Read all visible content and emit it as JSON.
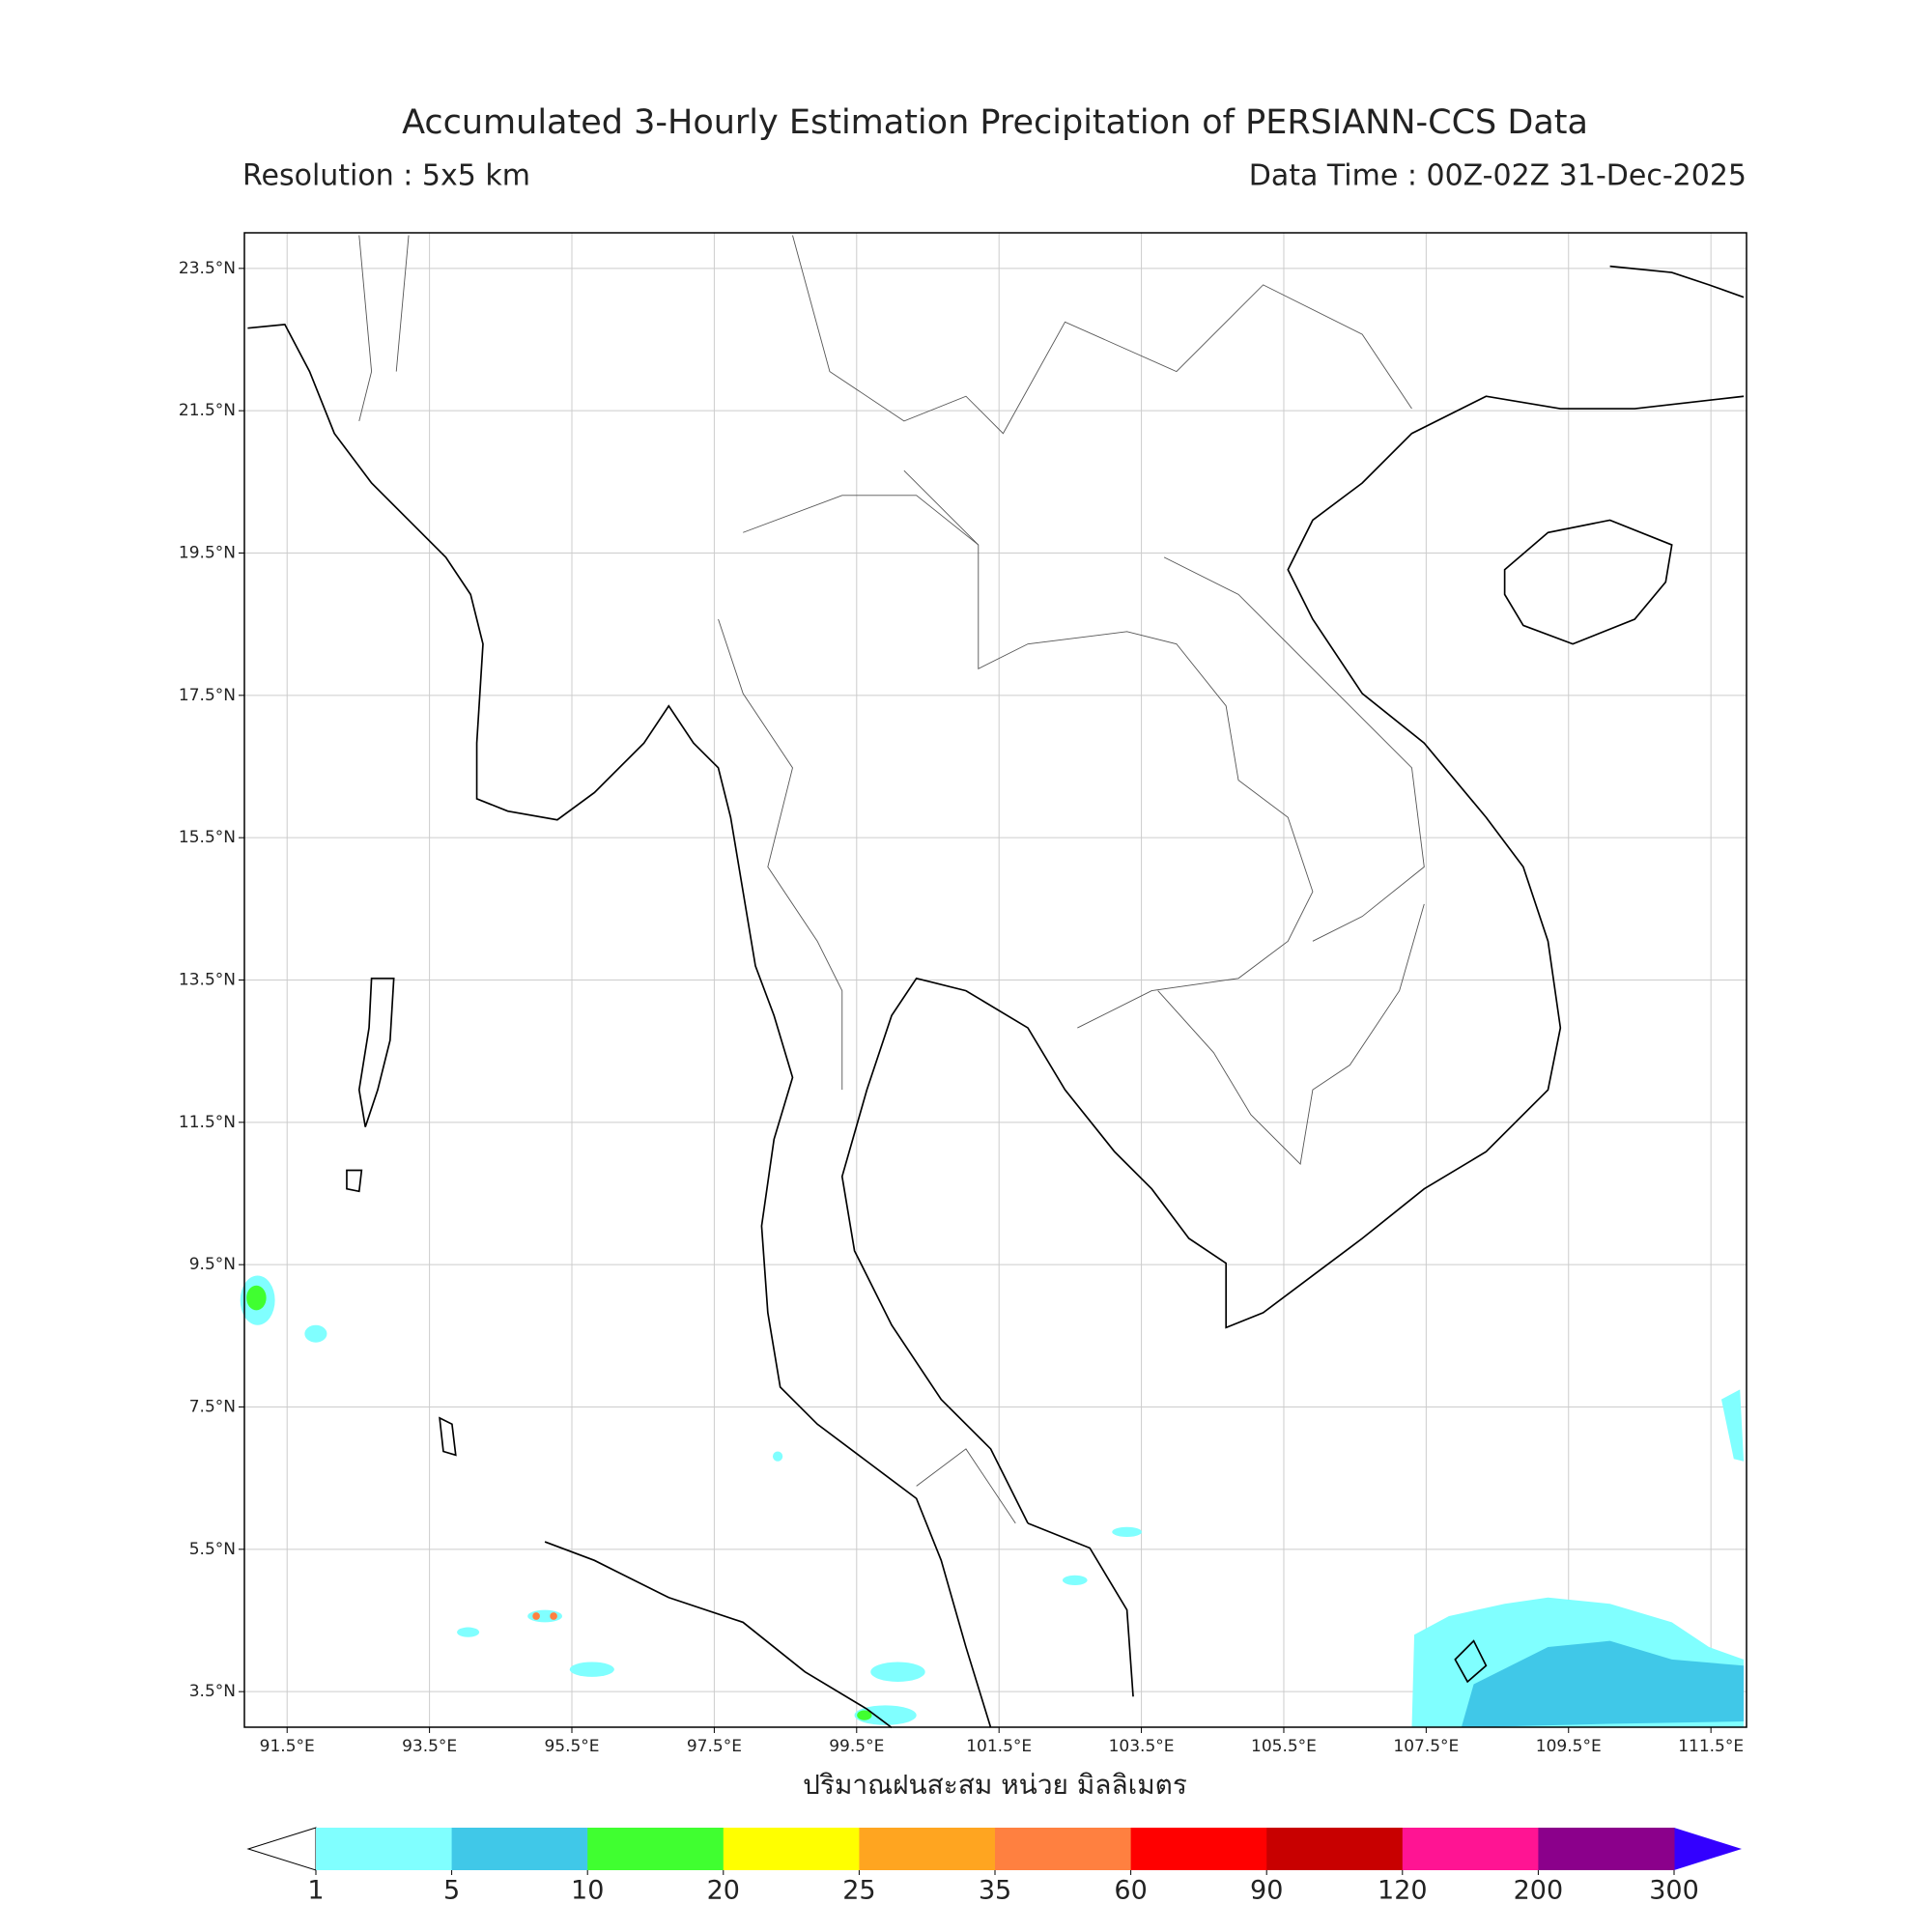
{
  "header": {
    "title": "Accumulated 3-Hourly Estimation Precipitation of PERSIANN-CCS Data",
    "resolution": "Resolution : 5x5 km",
    "data_time": "Data Time : 00Z-02Z 31-Dec-2025"
  },
  "map": {
    "xlim": [
      90.9,
      112.0
    ],
    "ylim": [
      3.0,
      24.0
    ],
    "grid": true,
    "xticks": [
      {
        "value": 91.5,
        "label": "91.5°E"
      },
      {
        "value": 93.5,
        "label": "93.5°E"
      },
      {
        "value": 95.5,
        "label": "95.5°E"
      },
      {
        "value": 97.5,
        "label": "97.5°E"
      },
      {
        "value": 99.5,
        "label": "99.5°E"
      },
      {
        "value": 101.5,
        "label": "101.5°E"
      },
      {
        "value": 103.5,
        "label": "103.5°E"
      },
      {
        "value": 105.5,
        "label": "105.5°E"
      },
      {
        "value": 107.5,
        "label": "107.5°E"
      },
      {
        "value": 109.5,
        "label": "109.5°E"
      },
      {
        "value": 111.5,
        "label": "111.5°E"
      }
    ],
    "yticks": [
      {
        "value": 3.5,
        "label": "3.5°N"
      },
      {
        "value": 5.5,
        "label": "5.5°N"
      },
      {
        "value": 7.5,
        "label": "7.5°N"
      },
      {
        "value": 9.5,
        "label": "9.5°N"
      },
      {
        "value": 11.5,
        "label": "11.5°N"
      },
      {
        "value": 13.5,
        "label": "13.5°N"
      },
      {
        "value": 15.5,
        "label": "15.5°N"
      },
      {
        "value": 17.5,
        "label": "17.5°N"
      },
      {
        "value": 19.5,
        "label": "19.5°N"
      },
      {
        "value": 21.5,
        "label": "21.5°N"
      },
      {
        "value": 23.5,
        "label": "23.5°N"
      }
    ]
  },
  "colorbar": {
    "label": "ปริมาณฝนสะสม หน่วย มิลลิเมตร",
    "ticks": [
      1,
      5,
      10,
      20,
      25,
      35,
      60,
      90,
      120,
      200,
      300
    ],
    "colors": [
      "#80ffff",
      "#40c8e8",
      "#40ff30",
      "#ffff00",
      "#ffa520",
      "#ff8040",
      "#ff0000",
      "#c80000",
      "#ff1493",
      "#8b008b"
    ],
    "under_color": "#ffffff",
    "over_color": "#3300ff"
  }
}
